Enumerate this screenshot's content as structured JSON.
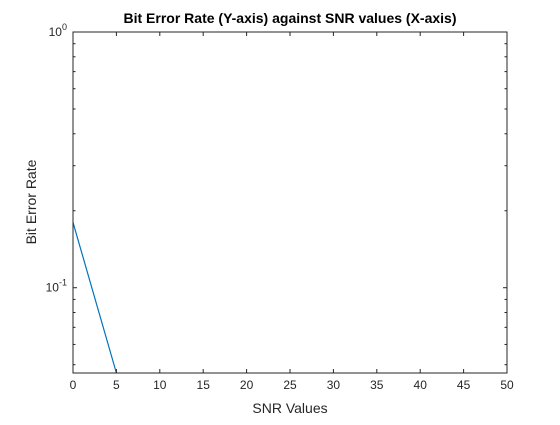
{
  "chart_data": {
    "type": "line",
    "title": "Bit Error Rate (Y-axis) against SNR values (X-axis)",
    "xlabel": "SNR Values",
    "ylabel": "Bit Error Rate",
    "xlim": [
      0,
      50
    ],
    "ylim": [
      0.0464,
      1
    ],
    "yscale": "log",
    "grid": false,
    "x_ticks": [
      0,
      5,
      10,
      15,
      20,
      25,
      30,
      35,
      40,
      45,
      50
    ],
    "x_tick_labels": [
      "0",
      "5",
      "10",
      "15",
      "20",
      "25",
      "30",
      "35",
      "40",
      "45",
      "50"
    ],
    "y_ticks": [
      0.1,
      1
    ],
    "y_tick_labels": [
      {
        "base": "10",
        "exp": "-1"
      },
      {
        "base": "10",
        "exp": "0"
      }
    ],
    "series": [
      {
        "color": "#0072BD",
        "x": [
          0,
          5
        ],
        "y": [
          0.18,
          0.0464
        ]
      }
    ]
  }
}
